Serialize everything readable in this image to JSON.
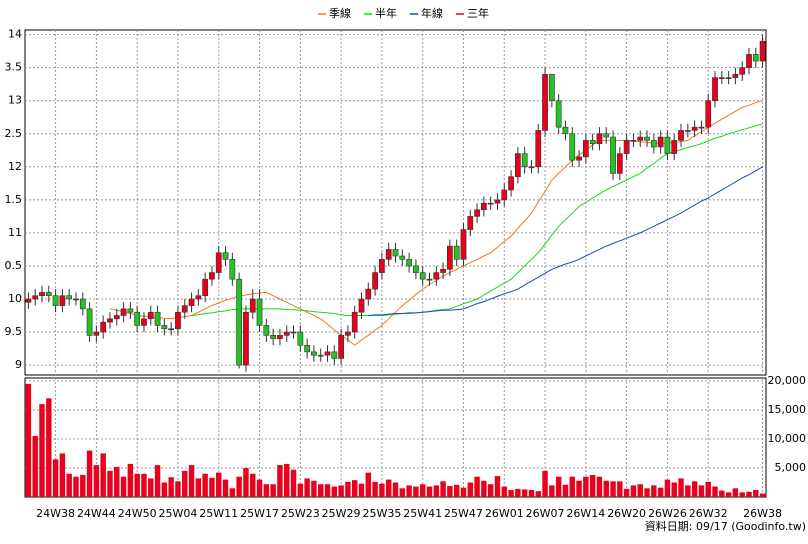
{
  "chart_data": {
    "type": "candlestick",
    "footnote": "資料日期: 09/17  (Goodinfo.tw)",
    "categories": [
      null,
      null,
      null,
      null,
      "24W38",
      null,
      null,
      null,
      null,
      null,
      "24W44",
      null,
      null,
      null,
      null,
      null,
      "24W50",
      null,
      null,
      null,
      null,
      null,
      "25W04",
      null,
      null,
      null,
      null,
      null,
      "25W11",
      null,
      null,
      null,
      null,
      null,
      "25W17",
      null,
      null,
      null,
      null,
      null,
      "25W23",
      null,
      null,
      null,
      null,
      null,
      "25W29",
      null,
      null,
      null,
      null,
      null,
      "25W35",
      null,
      null,
      null,
      null,
      null,
      "25W41",
      null,
      null,
      null,
      null,
      null,
      "25W47",
      null,
      null,
      null,
      null,
      null,
      "26W01",
      null,
      null,
      null,
      null,
      null,
      "26W07",
      null,
      null,
      null,
      null,
      null,
      "26W14",
      null,
      null,
      null,
      null,
      null,
      "26W20",
      null,
      null,
      null,
      null,
      null,
      "26W26",
      null,
      null,
      null,
      null,
      null,
      "26W32",
      null,
      null,
      null,
      null,
      null,
      null,
      null,
      "26W38"
    ],
    "open": [
      9.95,
      10.0,
      10.05,
      10.1,
      10.05,
      9.9,
      10.05,
      10.0,
      10.0,
      9.85,
      9.45,
      9.5,
      9.65,
      9.7,
      9.75,
      9.85,
      9.8,
      9.6,
      9.7,
      9.8,
      9.6,
      9.55,
      9.55,
      9.8,
      9.9,
      10.0,
      10.05,
      10.3,
      10.4,
      10.7,
      10.6,
      10.3,
      9.0,
      9.8,
      10.0,
      9.6,
      9.45,
      9.4,
      9.45,
      9.5,
      9.5,
      9.3,
      9.2,
      9.15,
      9.15,
      9.2,
      9.1,
      9.45,
      9.5,
      9.8,
      10.0,
      10.15,
      10.4,
      10.6,
      10.75,
      10.65,
      10.6,
      10.5,
      10.4,
      10.3,
      10.3,
      10.4,
      10.45,
      10.8,
      10.6,
      11.05,
      11.25,
      11.35,
      11.45,
      11.45,
      11.5,
      11.65,
      11.85,
      12.2,
      12.0,
      12.0,
      12.55,
      13.4,
      13.0,
      12.6,
      12.5,
      12.1,
      12.15,
      12.4,
      12.35,
      12.5,
      12.45,
      11.9,
      12.2,
      12.4,
      12.4,
      12.45,
      12.4,
      12.3,
      12.45,
      12.2,
      12.4,
      12.55,
      12.55,
      12.6,
      12.6,
      13.0,
      13.35,
      13.35,
      13.35,
      13.4,
      13.5,
      13.7,
      13.6
    ],
    "high": [
      10.1,
      10.15,
      10.2,
      10.2,
      10.15,
      10.15,
      10.15,
      10.1,
      10.1,
      9.95,
      9.6,
      9.75,
      9.8,
      9.85,
      9.95,
      9.95,
      9.9,
      9.8,
      9.9,
      9.9,
      9.7,
      9.65,
      9.9,
      10.0,
      10.1,
      10.15,
      10.4,
      10.5,
      10.8,
      10.8,
      10.7,
      10.4,
      9.9,
      10.15,
      10.15,
      9.7,
      9.55,
      9.55,
      9.6,
      9.6,
      9.6,
      9.4,
      9.3,
      9.25,
      9.3,
      9.3,
      9.55,
      9.6,
      9.9,
      10.1,
      10.25,
      10.5,
      10.7,
      10.85,
      10.85,
      10.75,
      10.7,
      10.6,
      10.5,
      10.4,
      10.5,
      10.55,
      10.9,
      10.9,
      11.15,
      11.35,
      11.45,
      11.55,
      11.55,
      11.6,
      11.75,
      11.95,
      12.3,
      12.3,
      12.1,
      12.65,
      13.5,
      13.4,
      13.1,
      12.7,
      12.6,
      12.25,
      12.5,
      12.5,
      12.6,
      12.6,
      12.55,
      12.3,
      12.5,
      12.5,
      12.55,
      12.55,
      12.5,
      12.55,
      12.55,
      12.5,
      12.65,
      12.65,
      12.7,
      12.7,
      13.1,
      13.45,
      13.45,
      13.45,
      13.5,
      13.6,
      13.8,
      13.8,
      14.0
    ],
    "low": [
      9.85,
      9.9,
      9.95,
      9.95,
      9.8,
      9.8,
      9.9,
      9.9,
      9.75,
      9.35,
      9.35,
      9.4,
      9.55,
      9.6,
      9.65,
      9.7,
      9.5,
      9.5,
      9.6,
      9.5,
      9.45,
      9.45,
      9.45,
      9.7,
      9.8,
      9.9,
      9.95,
      10.2,
      10.3,
      10.5,
      10.2,
      8.95,
      8.9,
      9.7,
      9.5,
      9.35,
      9.3,
      9.3,
      9.35,
      9.4,
      9.2,
      9.1,
      9.05,
      9.05,
      9.05,
      9.0,
      9.0,
      9.35,
      9.4,
      9.7,
      9.9,
      10.05,
      10.3,
      10.5,
      10.55,
      10.5,
      10.4,
      10.3,
      10.2,
      10.2,
      10.2,
      10.3,
      10.35,
      10.5,
      10.5,
      10.95,
      11.15,
      11.25,
      11.35,
      11.35,
      11.4,
      11.55,
      11.75,
      11.9,
      11.9,
      11.9,
      12.45,
      12.9,
      12.5,
      12.4,
      12.0,
      12.0,
      12.05,
      12.25,
      12.25,
      12.35,
      11.8,
      11.8,
      12.1,
      12.3,
      12.3,
      12.3,
      12.2,
      12.2,
      12.1,
      12.1,
      12.3,
      12.45,
      12.45,
      12.5,
      12.5,
      12.9,
      13.25,
      13.25,
      13.25,
      13.3,
      13.4,
      13.5,
      13.5
    ],
    "close": [
      10.0,
      10.05,
      10.1,
      10.05,
      9.9,
      10.05,
      10.0,
      10.0,
      9.85,
      9.45,
      9.5,
      9.65,
      9.7,
      9.75,
      9.85,
      9.8,
      9.6,
      9.7,
      9.8,
      9.6,
      9.55,
      9.55,
      9.8,
      9.9,
      10.0,
      10.05,
      10.3,
      10.4,
      10.7,
      10.6,
      10.3,
      9.0,
      9.8,
      10.0,
      9.6,
      9.45,
      9.4,
      9.45,
      9.5,
      9.5,
      9.3,
      9.2,
      9.15,
      9.15,
      9.2,
      9.1,
      9.45,
      9.5,
      9.8,
      10.0,
      10.15,
      10.4,
      10.6,
      10.75,
      10.65,
      10.6,
      10.5,
      10.4,
      10.3,
      10.3,
      10.4,
      10.45,
      10.8,
      10.6,
      11.05,
      11.25,
      11.35,
      11.45,
      11.45,
      11.5,
      11.65,
      11.85,
      12.2,
      12.0,
      12.0,
      12.55,
      13.4,
      13.0,
      12.6,
      12.5,
      12.1,
      12.15,
      12.4,
      12.35,
      12.5,
      12.45,
      11.9,
      12.2,
      12.4,
      12.4,
      12.45,
      12.4,
      12.3,
      12.45,
      12.2,
      12.4,
      12.55,
      12.55,
      12.6,
      12.6,
      13.0,
      13.35,
      13.35,
      13.35,
      13.4,
      13.5,
      13.7,
      13.6,
      13.9
    ],
    "up_color": "#e8001c",
    "down_color": "#22c322",
    "volume": [
      19500,
      10500,
      16000,
      17000,
      6500,
      7500,
      4000,
      3500,
      3800,
      8000,
      5500,
      7500,
      4500,
      5200,
      3500,
      5700,
      4000,
      4000,
      3200,
      5500,
      2500,
      3400,
      2700,
      4500,
      5500,
      3200,
      4000,
      3300,
      4200,
      3000,
      1500,
      3500,
      5000,
      4000,
      3000,
      2200,
      2200,
      5500,
      5700,
      4700,
      2300,
      3200,
      2800,
      2200,
      2200,
      1800,
      2000,
      2600,
      2900,
      2300,
      4200,
      2600,
      2300,
      3000,
      2500,
      1500,
      2000,
      1800,
      2200,
      1800,
      2000,
      2700,
      1900,
      2100,
      1600,
      2500,
      3500,
      2800,
      2200,
      3600,
      1800,
      1200,
      1400,
      1300,
      1200,
      1000,
      4500,
      2000,
      3500,
      2100,
      3500,
      2800,
      3500,
      3800,
      3500,
      2800,
      2700,
      2700,
      1400,
      2000,
      2200,
      1500,
      2000,
      1600,
      3000,
      2500,
      3200,
      2000,
      2700,
      2000,
      2600,
      1800,
      1100,
      800,
      1500,
      800,
      900,
      1200,
      600
    ],
    "volume_color": "#e8001c",
    "series": [
      {
        "name": "季線",
        "color": "#f07820",
        "values": [
          null,
          null,
          null,
          null,
          null,
          null,
          null,
          null,
          null,
          null,
          null,
          null,
          9.85,
          9.83,
          9.8,
          9.78,
          9.75,
          9.74,
          9.73,
          9.72,
          9.71,
          9.7,
          9.72,
          9.73,
          9.75,
          9.8,
          9.85,
          9.9,
          9.94,
          9.98,
          10.01,
          10.05,
          10.06,
          10.08,
          10.09,
          10.1,
          10.05,
          10.0,
          9.95,
          9.9,
          9.85,
          9.8,
          9.75,
          9.7,
          9.62,
          9.53,
          9.45,
          9.38,
          9.3,
          9.38,
          9.45,
          9.53,
          9.6,
          9.7,
          9.8,
          9.9,
          9.98,
          10.07,
          10.15,
          10.22,
          10.28,
          10.35,
          10.4,
          10.45,
          10.5,
          10.55,
          10.6,
          10.65,
          10.7,
          10.78,
          10.87,
          10.95,
          11.07,
          11.18,
          11.3,
          11.47,
          11.63,
          11.8,
          11.9,
          12.0,
          12.1,
          12.18,
          12.25,
          12.33,
          12.4,
          12.4,
          12.4,
          12.4,
          12.4,
          12.39,
          12.38,
          12.37,
          12.36,
          12.35,
          12.36,
          12.37,
          12.38,
          12.4,
          12.47,
          12.53,
          12.6,
          12.66,
          12.72,
          12.78,
          12.84,
          12.9,
          12.93,
          12.97,
          13.0
        ]
      },
      {
        "name": "半年",
        "color": "#18d818",
        "values": [
          null,
          null,
          null,
          null,
          null,
          null,
          null,
          null,
          null,
          null,
          null,
          null,
          null,
          null,
          null,
          null,
          null,
          null,
          null,
          null,
          null,
          null,
          null,
          null,
          9.75,
          9.76,
          9.78,
          9.79,
          9.81,
          9.82,
          9.84,
          9.85,
          9.85,
          9.85,
          9.85,
          9.85,
          9.85,
          9.85,
          9.84,
          9.84,
          9.83,
          9.82,
          9.81,
          9.8,
          9.79,
          9.78,
          9.76,
          9.75,
          9.75,
          9.75,
          9.75,
          9.75,
          9.75,
          9.76,
          9.77,
          9.78,
          9.78,
          9.79,
          9.8,
          9.81,
          9.83,
          9.84,
          9.85,
          9.89,
          9.93,
          9.96,
          10.0,
          10.06,
          10.12,
          10.18,
          10.24,
          10.3,
          10.4,
          10.5,
          10.6,
          10.7,
          10.83,
          10.97,
          11.1,
          11.2,
          11.3,
          11.4,
          11.46,
          11.53,
          11.59,
          11.65,
          11.7,
          11.75,
          11.8,
          11.85,
          11.9,
          11.98,
          12.05,
          12.13,
          12.2,
          12.23,
          12.26,
          12.29,
          12.32,
          12.35,
          12.39,
          12.43,
          12.46,
          12.5,
          12.53,
          12.56,
          12.59,
          12.62,
          12.65
        ]
      },
      {
        "name": "年線",
        "color": "#1848c8",
        "values": [
          null,
          null,
          null,
          null,
          null,
          null,
          null,
          null,
          null,
          null,
          null,
          null,
          null,
          null,
          null,
          null,
          null,
          null,
          null,
          null,
          null,
          null,
          null,
          null,
          null,
          null,
          null,
          null,
          null,
          null,
          null,
          null,
          null,
          null,
          null,
          null,
          null,
          null,
          null,
          null,
          null,
          null,
          null,
          null,
          null,
          null,
          null,
          null,
          null,
          null,
          9.75,
          9.76,
          9.76,
          9.77,
          9.78,
          9.78,
          9.79,
          9.79,
          9.8,
          9.81,
          9.82,
          9.83,
          9.83,
          9.84,
          9.85,
          9.89,
          9.93,
          9.96,
          10.0,
          10.04,
          10.08,
          10.11,
          10.15,
          10.21,
          10.27,
          10.33,
          10.39,
          10.45,
          10.49,
          10.53,
          10.56,
          10.6,
          10.65,
          10.7,
          10.75,
          10.8,
          10.84,
          10.88,
          10.92,
          10.96,
          11.0,
          11.05,
          11.1,
          11.15,
          11.2,
          11.25,
          11.3,
          11.36,
          11.42,
          11.48,
          11.53,
          11.59,
          11.65,
          11.71,
          11.77,
          11.83,
          11.88,
          11.94,
          12.0
        ]
      },
      {
        "name": "三年",
        "color": "#e8001c",
        "values": [
          null,
          null,
          null,
          null,
          null,
          null,
          null,
          null,
          null,
          null,
          null,
          null,
          null,
          null,
          null,
          null,
          null,
          null,
          null,
          null,
          null,
          null,
          null,
          null,
          null,
          null,
          null,
          null,
          null,
          null,
          null,
          null,
          null,
          null,
          null,
          null,
          null,
          null,
          null,
          null,
          null,
          null,
          null,
          null,
          null,
          null,
          null,
          null,
          null,
          null,
          null,
          null,
          null,
          null,
          null,
          null,
          null,
          null,
          null,
          null,
          null,
          null,
          null,
          null,
          null,
          null,
          null,
          null,
          null,
          null,
          null,
          null,
          null,
          null,
          null,
          null,
          null,
          null,
          null,
          null,
          null,
          null,
          null,
          null,
          null,
          null,
          null,
          null,
          null,
          null,
          null,
          null,
          null,
          null,
          null,
          null,
          null,
          null,
          null,
          null,
          null,
          null,
          null,
          null,
          null,
          null,
          null,
          null,
          null
        ]
      }
    ],
    "ylim": [
      8.85,
      14.07
    ],
    "yticks": [
      9,
      9.5,
      10,
      {
        "value": 10.5,
        "label": "0.5"
      },
      11,
      {
        "value": 11.5,
        "label": "1.5"
      },
      12,
      {
        "value": 12.5,
        "label": "2.5"
      },
      13,
      {
        "value": 13.5,
        "label": "3.5"
      },
      14
    ],
    "y2lim": [
      0,
      20500
    ],
    "y2ticks": [
      {
        "value": 5000,
        "label": "5,000"
      },
      {
        "value": 10000,
        "label": "10,000"
      },
      {
        "value": 15000,
        "label": "15,000"
      },
      {
        "value": 20000,
        "label": "20,000"
      }
    ],
    "grid": true
  }
}
